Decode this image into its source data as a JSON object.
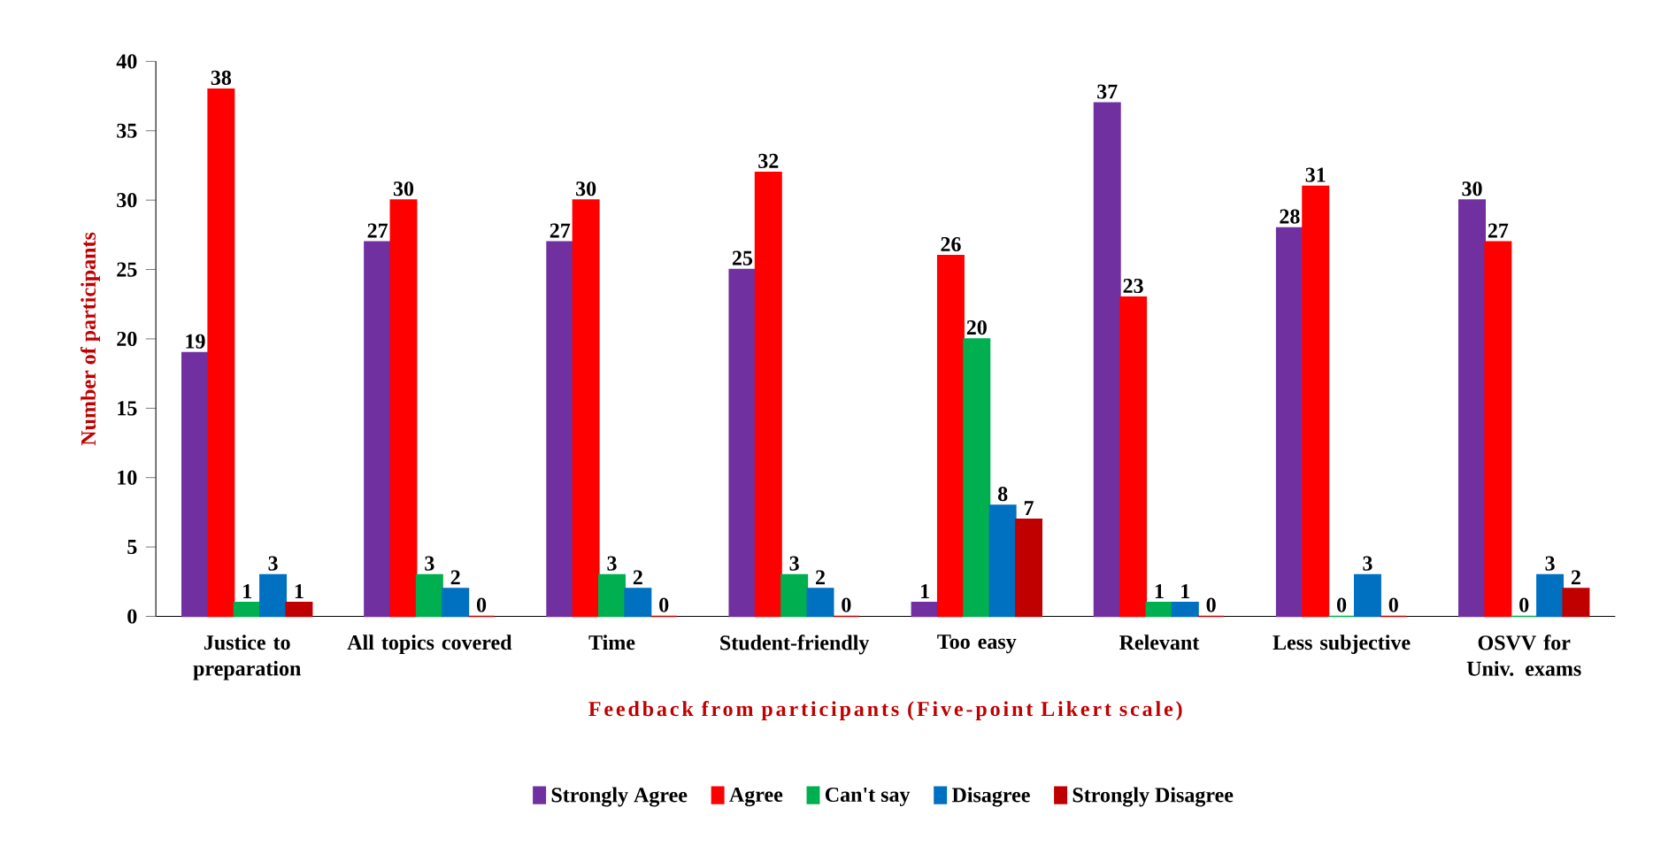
{
  "chart_data": {
    "type": "bar",
    "xlabel": "Feedback from participants (Five-point Likert scale)",
    "ylabel": "Number of participants",
    "categories": [
      "Justice to preparation",
      "All topics covered",
      "Time",
      "Student-friendly",
      "Too easy",
      "Relevant",
      "Less subjective",
      "OSVV for Univ. exams"
    ],
    "series": [
      {
        "name": "Strongly Agree",
        "color": "#7030a0",
        "values": [
          19,
          27,
          27,
          25,
          1,
          37,
          28,
          30
        ]
      },
      {
        "name": "Agree",
        "color": "#ff0000",
        "values": [
          38,
          30,
          30,
          32,
          26,
          23,
          31,
          27
        ]
      },
      {
        "name": "Can't say",
        "color": "#00b050",
        "values": [
          1,
          3,
          3,
          3,
          20,
          1,
          0,
          0
        ]
      },
      {
        "name": "Disagree",
        "color": "#0070c0",
        "values": [
          3,
          2,
          2,
          2,
          8,
          1,
          3,
          3
        ]
      },
      {
        "name": "Strongly Disagree",
        "color": "#c00000",
        "values": [
          1,
          0,
          0,
          0,
          7,
          0,
          0,
          2
        ]
      }
    ],
    "ylim": [
      0,
      40
    ],
    "yticks": [
      0,
      5,
      10,
      15,
      20,
      25,
      30,
      35,
      40
    ],
    "data_labels": true,
    "legend": "bottom",
    "grid": false
  }
}
